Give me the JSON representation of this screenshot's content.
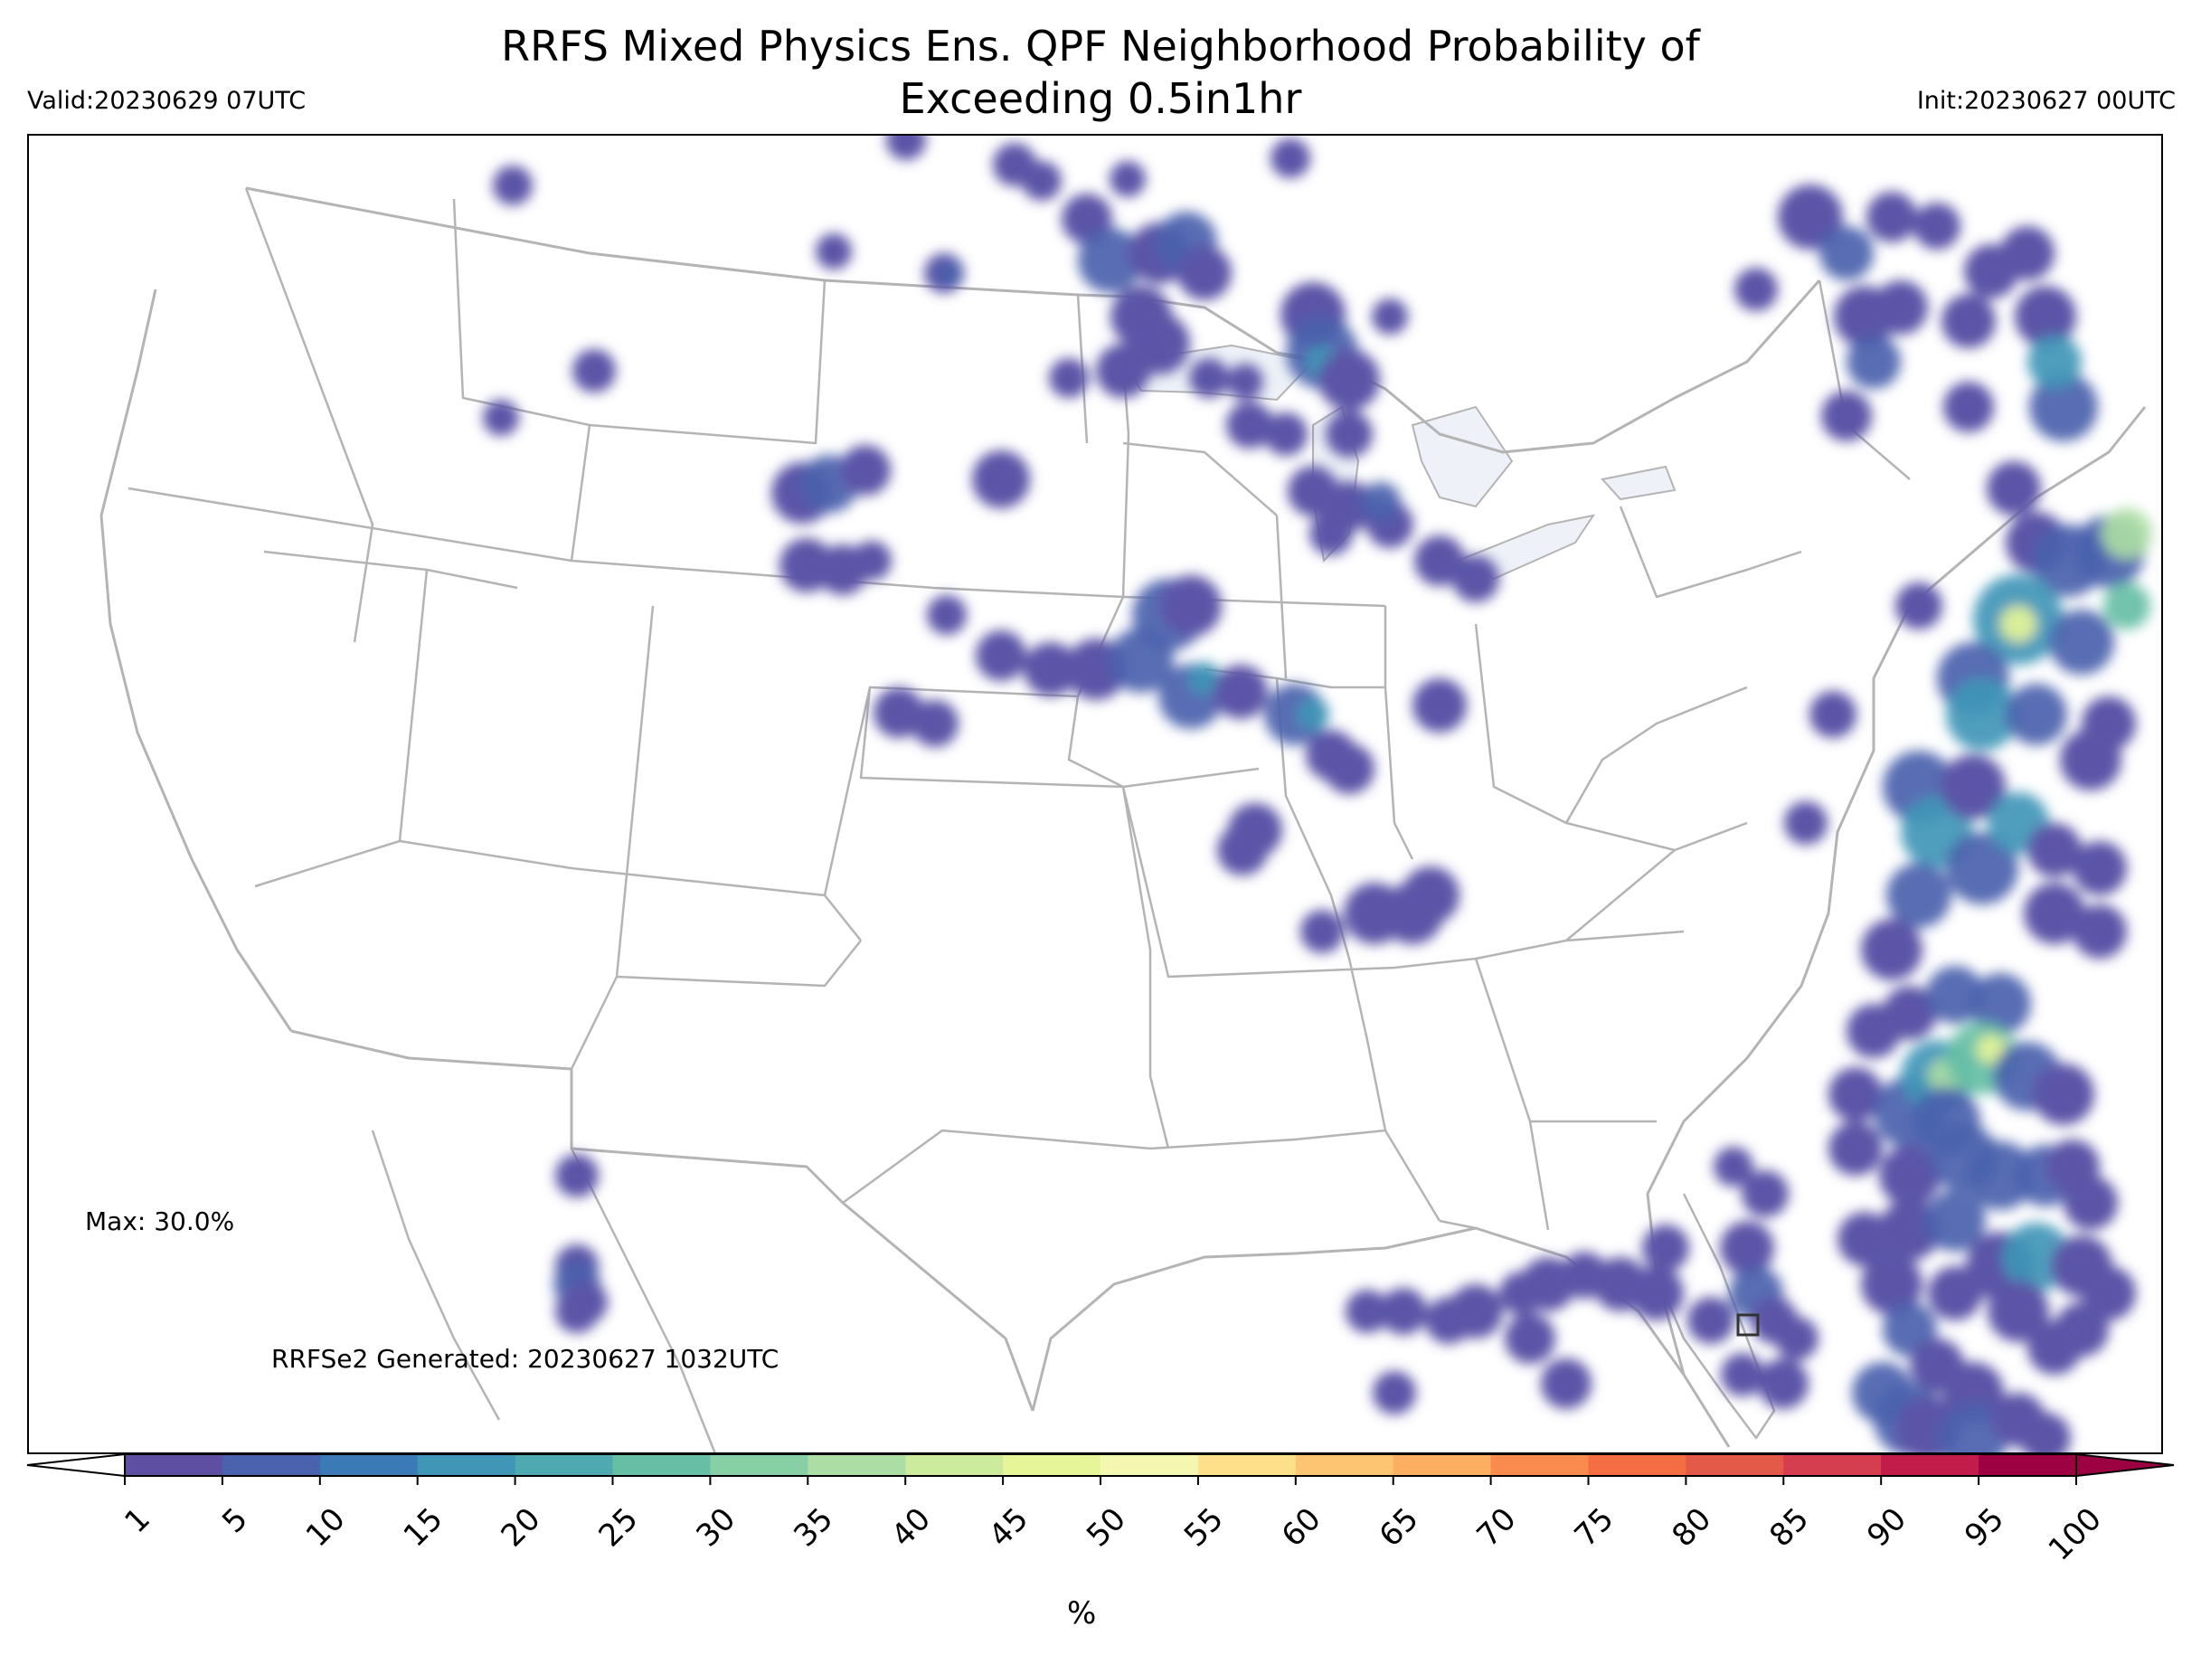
{
  "title": {
    "line1": "RRFS Mixed Physics Ens. QPF Neighborhood Probability of",
    "line2": "Exceeding 0.5in1hr"
  },
  "valid": "Valid:20230629 07UTC",
  "init": "Init:20230627 00UTC",
  "max_label": "Max: 30.0%",
  "generated": "RRFSe2 Generated: 20230627 1032UTC",
  "colorbar": {
    "unit": "%",
    "ticks": [
      "1",
      "5",
      "10",
      "15",
      "20",
      "25",
      "30",
      "35",
      "40",
      "45",
      "50",
      "55",
      "60",
      "65",
      "70",
      "75",
      "80",
      "85",
      "90",
      "95",
      "100"
    ],
    "colors": [
      "#5e4fa2",
      "#4a62ad",
      "#3a7ab7",
      "#3f96b7",
      "#4fa9b0",
      "#66bfa5",
      "#87cfa4",
      "#abdda4",
      "#cdeb9c",
      "#e6f598",
      "#f4f7b0",
      "#fee08b",
      "#fdc571",
      "#fdae61",
      "#f98b4f",
      "#f46d43",
      "#e45a49",
      "#d53e4f",
      "#c11c4a",
      "#9e0142"
    ],
    "extend_min_color": "#ffffff",
    "extend_max_color": "#9e0142"
  },
  "map": {
    "projection": "Lambert conformal, CONUS domain",
    "boundary_color": "#b4b4b4",
    "water_color": "#eef2f8",
    "max_probability_percent": 30.0,
    "square_marker": "southwest Florida coast"
  }
}
